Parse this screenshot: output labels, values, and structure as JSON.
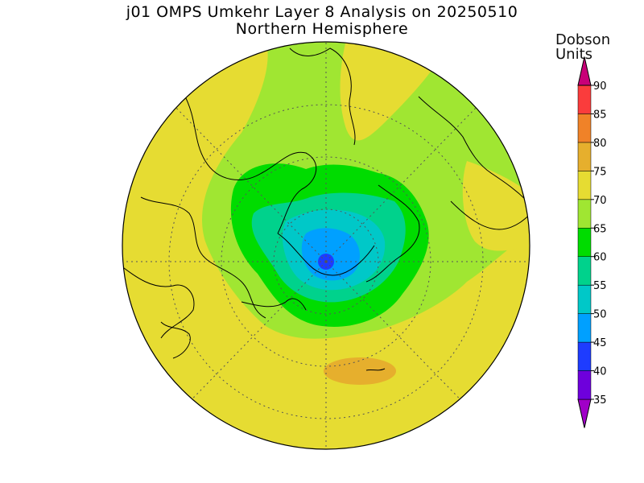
{
  "title": "j01 OMPS Umkehr Layer 8 Analysis on 20250510",
  "subtitle": "Northern Hemisphere",
  "units_line1": "Dobson",
  "units_line2": "Units",
  "colorbar": {
    "levels": [
      35,
      40,
      45,
      50,
      55,
      60,
      65,
      70,
      75,
      80,
      85,
      90
    ],
    "labels": [
      "35",
      "40",
      "45",
      "50",
      "55",
      "60",
      "65",
      "70",
      "75",
      "80",
      "85",
      "90"
    ],
    "colors": [
      "#a000c8",
      "#6e00dc",
      "#1e3cff",
      "#00a0ff",
      "#00c8c8",
      "#00d28c",
      "#00dc00",
      "#a0e632",
      "#e6dc32",
      "#e6af2d",
      "#f08228",
      "#fa3c3c",
      "#c80078"
    ]
  },
  "map": {
    "projection": "north polar stereographic",
    "hemisphere": "Northern Hemisphere"
  }
}
